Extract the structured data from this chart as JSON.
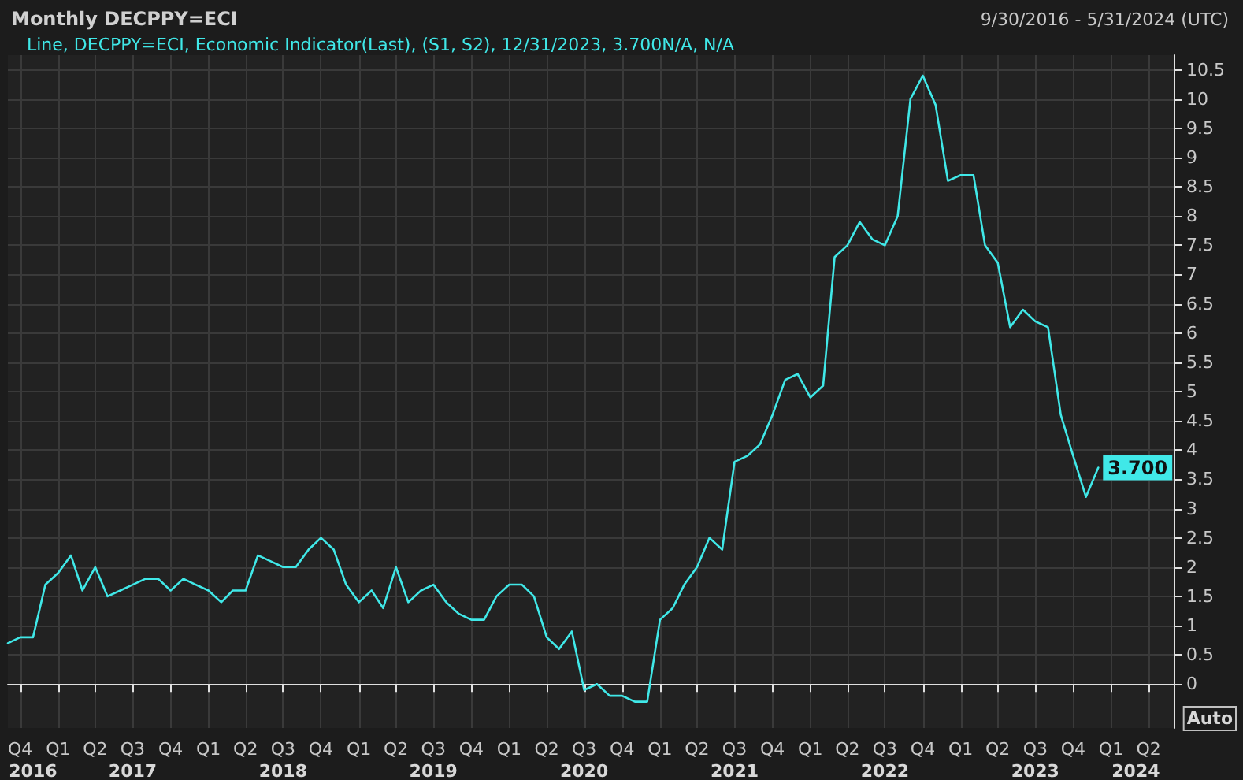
{
  "chart_data": {
    "type": "line",
    "title": "Monthly DECPPY=ECI",
    "subtitle": "9/30/2016 - 5/31/2024 (UTC)",
    "x": [
      "2016-09",
      "2016-10",
      "2016-11",
      "2016-12",
      "2017-01",
      "2017-02",
      "2017-03",
      "2017-04",
      "2017-05",
      "2017-06",
      "2017-07",
      "2017-08",
      "2017-09",
      "2017-10",
      "2017-11",
      "2017-12",
      "2018-01",
      "2018-02",
      "2018-03",
      "2018-04",
      "2018-05",
      "2018-06",
      "2018-07",
      "2018-08",
      "2018-09",
      "2018-10",
      "2018-11",
      "2018-12",
      "2019-01",
      "2019-02",
      "2019-03",
      "2019-04",
      "2019-05",
      "2019-06",
      "2019-07",
      "2019-08",
      "2019-09",
      "2019-10",
      "2019-11",
      "2019-12",
      "2020-01",
      "2020-02",
      "2020-03",
      "2020-04",
      "2020-05",
      "2020-06",
      "2020-07",
      "2020-08",
      "2020-09",
      "2020-10",
      "2020-11",
      "2020-12",
      "2021-01",
      "2021-02",
      "2021-03",
      "2021-04",
      "2021-05",
      "2021-06",
      "2021-07",
      "2021-08",
      "2021-09",
      "2021-10",
      "2021-11",
      "2021-12",
      "2022-01",
      "2022-02",
      "2022-03",
      "2022-04",
      "2022-05",
      "2022-06",
      "2022-07",
      "2022-08",
      "2022-09",
      "2022-10",
      "2022-11",
      "2022-12",
      "2023-01",
      "2023-02",
      "2023-03",
      "2023-04",
      "2023-05",
      "2023-06",
      "2023-07",
      "2023-08",
      "2023-09",
      "2023-10",
      "2023-11",
      "2023-12"
    ],
    "series": [
      {
        "name": "Line, DECPPY=ECI, Economic Indicator(Last), (S1, S2), 12/31/2023, 3.700N/A, N/A",
        "color": "#40e8e8",
        "values": [
          0.7,
          0.8,
          0.8,
          1.7,
          1.9,
          2.2,
          1.6,
          2.0,
          1.5,
          1.6,
          1.7,
          1.8,
          1.8,
          1.6,
          1.8,
          1.7,
          1.6,
          1.4,
          1.6,
          1.6,
          2.2,
          2.1,
          2.0,
          2.0,
          2.3,
          2.5,
          2.3,
          1.7,
          1.4,
          1.6,
          1.3,
          2.0,
          1.4,
          1.6,
          1.7,
          1.4,
          1.2,
          1.1,
          1.1,
          1.5,
          1.7,
          1.7,
          1.5,
          0.8,
          0.6,
          0.9,
          -0.1,
          0.0,
          -0.2,
          -0.2,
          -0.3,
          -0.3,
          1.1,
          1.3,
          1.7,
          2.0,
          2.5,
          2.3,
          3.8,
          3.9,
          4.1,
          4.6,
          5.2,
          5.3,
          4.9,
          5.1,
          7.3,
          7.5,
          7.9,
          7.6,
          7.5,
          8.0,
          10.0,
          10.4,
          9.9,
          8.6,
          8.7,
          8.7,
          7.5,
          7.2,
          6.1,
          6.4,
          6.2,
          6.1,
          4.6,
          3.9,
          3.2,
          3.7
        ]
      }
    ],
    "xlim": [
      "2016-09",
      "2024-06"
    ],
    "xticks": [
      {
        "value": "2016-10",
        "label": "Q4"
      },
      {
        "value": "2017-01",
        "label": "Q1"
      },
      {
        "value": "2017-04",
        "label": "Q2"
      },
      {
        "value": "2017-07",
        "label": "Q3"
      },
      {
        "value": "2017-10",
        "label": "Q4"
      },
      {
        "value": "2018-01",
        "label": "Q1"
      },
      {
        "value": "2018-04",
        "label": "Q2"
      },
      {
        "value": "2018-07",
        "label": "Q3"
      },
      {
        "value": "2018-10",
        "label": "Q4"
      },
      {
        "value": "2019-01",
        "label": "Q1"
      },
      {
        "value": "2019-04",
        "label": "Q2"
      },
      {
        "value": "2019-07",
        "label": "Q3"
      },
      {
        "value": "2019-10",
        "label": "Q4"
      },
      {
        "value": "2020-01",
        "label": "Q1"
      },
      {
        "value": "2020-04",
        "label": "Q2"
      },
      {
        "value": "2020-07",
        "label": "Q3"
      },
      {
        "value": "2020-10",
        "label": "Q4"
      },
      {
        "value": "2021-01",
        "label": "Q1"
      },
      {
        "value": "2021-04",
        "label": "Q2"
      },
      {
        "value": "2021-07",
        "label": "Q3"
      },
      {
        "value": "2021-10",
        "label": "Q4"
      },
      {
        "value": "2022-01",
        "label": "Q1"
      },
      {
        "value": "2022-04",
        "label": "Q2"
      },
      {
        "value": "2022-07",
        "label": "Q3"
      },
      {
        "value": "2022-10",
        "label": "Q4"
      },
      {
        "value": "2023-01",
        "label": "Q1"
      },
      {
        "value": "2023-04",
        "label": "Q2"
      },
      {
        "value": "2023-07",
        "label": "Q3"
      },
      {
        "value": "2023-10",
        "label": "Q4"
      },
      {
        "value": "2024-01",
        "label": "Q1"
      },
      {
        "value": "2024-04",
        "label": "Q2"
      }
    ],
    "x2lim": [
      "2016-09",
      "2024-06"
    ],
    "x2ticks": [
      {
        "value": "2016-11",
        "label": "2016"
      },
      {
        "value": "2017-07",
        "label": "2017"
      },
      {
        "value": "2018-07",
        "label": "2018"
      },
      {
        "value": "2019-07",
        "label": "2019"
      },
      {
        "value": "2020-07",
        "label": "2020"
      },
      {
        "value": "2021-07",
        "label": "2021"
      },
      {
        "value": "2022-07",
        "label": "2022"
      },
      {
        "value": "2023-07",
        "label": "2023"
      },
      {
        "value": "2024-03",
        "label": "2024"
      }
    ],
    "ylim": [
      -0.75,
      10.75
    ],
    "yticks": [
      0,
      0.5,
      1,
      1.5,
      2,
      2.5,
      3,
      3.5,
      4,
      4.5,
      5,
      5.5,
      6,
      6.5,
      7,
      7.5,
      8,
      8.5,
      9,
      9.5,
      10,
      10.5
    ],
    "annotations": [
      {
        "text": "3.700",
        "x": "2023-12",
        "y": 3.7
      },
      "Auto"
    ],
    "grid": true,
    "legend": "top left",
    "marker": "none",
    "line_style": "solid"
  }
}
